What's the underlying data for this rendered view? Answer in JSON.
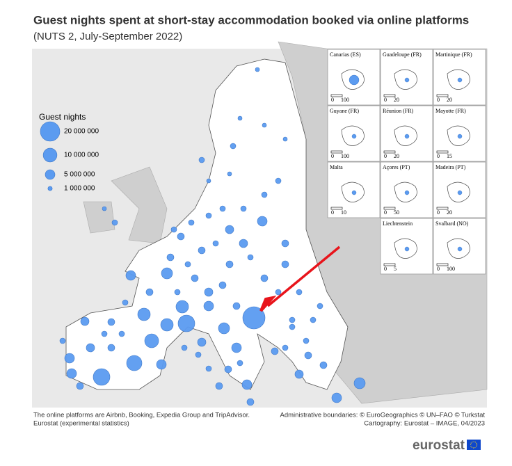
{
  "header": {
    "title": "Guest nights spent at short-stay accommodation booked via online platforms",
    "subtitle": "(NUTS 2, July-September 2022)"
  },
  "legend": {
    "title": "Guest nights",
    "items": [
      {
        "value": 20000000,
        "label": "20 000 000"
      },
      {
        "value": 10000000,
        "label": "10 000 000"
      },
      {
        "value": 5000000,
        "label": "5 000 000"
      },
      {
        "value": 1000000,
        "label": "1 000 000"
      }
    ]
  },
  "insets": [
    {
      "label": "Canarias (ES)",
      "scale": [
        0,
        100
      ]
    },
    {
      "label": "Guadeloupe (FR)",
      "scale": [
        0,
        20
      ]
    },
    {
      "label": "Martinique (FR)",
      "scale": [
        0,
        20
      ]
    },
    {
      "label": "Guyane (FR)",
      "scale": [
        0,
        100
      ]
    },
    {
      "label": "Réunion (FR)",
      "scale": [
        0,
        20
      ]
    },
    {
      "label": "Mayotte (FR)",
      "scale": [
        0,
        15
      ]
    },
    {
      "label": "Malta",
      "scale": [
        0,
        10
      ]
    },
    {
      "label": "Açores (PT)",
      "scale": [
        0,
        50
      ]
    },
    {
      "label": "Madeira (PT)",
      "scale": [
        0,
        20
      ]
    },
    {
      "label": "Liechtenstein",
      "scale": [
        0,
        5
      ]
    },
    {
      "label": "Svalbard (NO)",
      "scale": [
        0,
        100
      ]
    }
  ],
  "footer": {
    "left": [
      "The online platforms are Airbnb, Booking, Expedia Group and TripAdvisor.",
      "Eurostat (experimental statistics)"
    ],
    "right": [
      "Administrative boundaries: © EuroGeographics © UN–FAO © Turkstat",
      "Cartography: Eurostat – IMAGE, 04/2023"
    ],
    "logo": "eurostat"
  }
}
